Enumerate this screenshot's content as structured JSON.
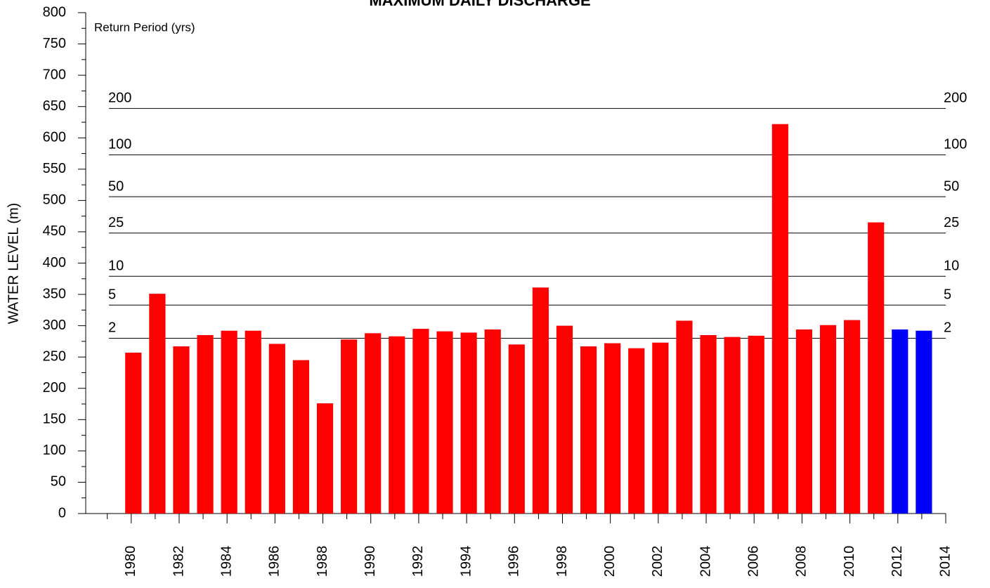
{
  "chart_data": {
    "type": "bar",
    "title": "MAXIMUM DAILY DISCHARGE",
    "y_label": "WATER LEVEL (m)",
    "annotation": "Return Period (yrs)",
    "x": [
      1980,
      1981,
      1982,
      1983,
      1984,
      1985,
      1986,
      1987,
      1988,
      1989,
      1990,
      1991,
      1992,
      1993,
      1994,
      1995,
      1996,
      1997,
      1998,
      1999,
      2000,
      2001,
      2002,
      2003,
      2004,
      2005,
      2006,
      2007,
      2008,
      2009,
      2010,
      2011,
      2012,
      2013
    ],
    "values": [
      257,
      351,
      267,
      285,
      292,
      292,
      271,
      245,
      176,
      278,
      288,
      283,
      295,
      291,
      289,
      294,
      270,
      361,
      300,
      267,
      272,
      264,
      273,
      308,
      285,
      282,
      284,
      622,
      294,
      301,
      309,
      465,
      294,
      292
    ],
    "colors": [
      "#ff0000",
      "#ff0000",
      "#ff0000",
      "#ff0000",
      "#ff0000",
      "#ff0000",
      "#ff0000",
      "#ff0000",
      "#ff0000",
      "#ff0000",
      "#ff0000",
      "#ff0000",
      "#ff0000",
      "#ff0000",
      "#ff0000",
      "#ff0000",
      "#ff0000",
      "#ff0000",
      "#ff0000",
      "#ff0000",
      "#ff0000",
      "#ff0000",
      "#ff0000",
      "#ff0000",
      "#ff0000",
      "#ff0000",
      "#ff0000",
      "#ff0000",
      "#ff0000",
      "#ff0000",
      "#ff0000",
      "#ff0000",
      "#0000ff",
      "#0000ff"
    ],
    "return_periods": [
      {
        "label": "2",
        "value": 280
      },
      {
        "label": "5",
        "value": 333
      },
      {
        "label": "10",
        "value": 379
      },
      {
        "label": "25",
        "value": 448
      },
      {
        "label": "50",
        "value": 506
      },
      {
        "label": "100",
        "value": 573
      },
      {
        "label": "200",
        "value": 647
      }
    ],
    "xlim": [
      1978.1,
      2014
    ],
    "xticks": [
      1980,
      1982,
      1984,
      1986,
      1988,
      1990,
      1992,
      1994,
      1996,
      1998,
      2000,
      2002,
      2004,
      2006,
      2008,
      2010,
      2012,
      2014
    ],
    "xticks_minor": [
      1979,
      1981,
      1983,
      1985,
      1987,
      1989,
      1991,
      1993,
      1995,
      1997,
      1999,
      2001,
      2003,
      2005,
      2007,
      2009,
      2011,
      2013
    ],
    "ylim": [
      0,
      800
    ],
    "yticks": [
      0,
      50,
      100,
      150,
      200,
      250,
      300,
      350,
      400,
      450,
      500,
      550,
      600,
      650,
      700,
      750,
      800
    ],
    "yticks_minor": [
      25,
      75,
      125,
      175,
      225,
      275,
      325,
      375,
      425,
      475,
      525,
      575,
      625,
      675,
      725,
      775
    ]
  }
}
